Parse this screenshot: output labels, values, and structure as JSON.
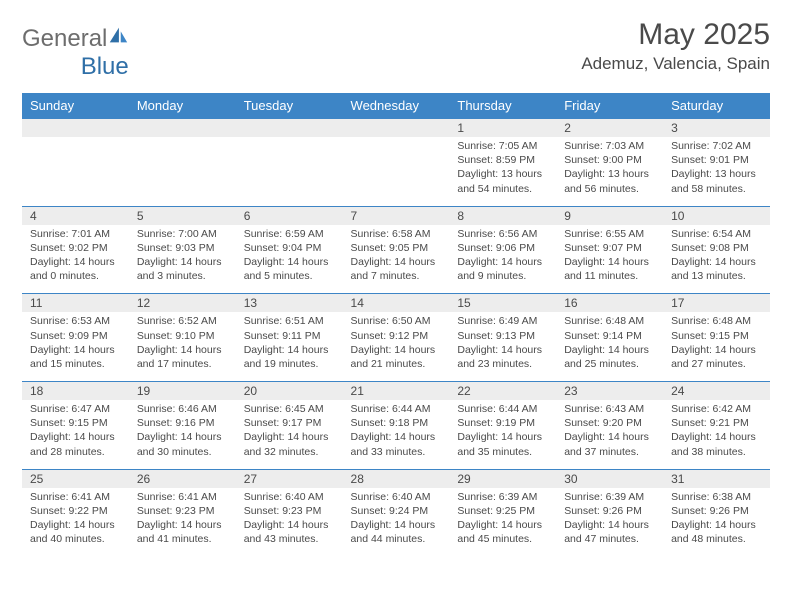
{
  "brand": {
    "name_a": "General",
    "name_b": "Blue"
  },
  "title": "May 2025",
  "location": "Ademuz, Valencia, Spain",
  "colors": {
    "header_bg": "#3d85c6",
    "header_text": "#ffffff",
    "daynum_bg": "#ededed",
    "border": "#3d85c6",
    "body_text": "#4a4a4a",
    "logo_gray": "#6d6d6d",
    "logo_blue": "#2f6fa7"
  },
  "weekdays": [
    "Sunday",
    "Monday",
    "Tuesday",
    "Wednesday",
    "Thursday",
    "Friday",
    "Saturday"
  ],
  "weeks": [
    {
      "nums": [
        "",
        "",
        "",
        "",
        "1",
        "2",
        "3"
      ],
      "cells": [
        "",
        "",
        "",
        "",
        "Sunrise: 7:05 AM\nSunset: 8:59 PM\nDaylight: 13 hours and 54 minutes.",
        "Sunrise: 7:03 AM\nSunset: 9:00 PM\nDaylight: 13 hours and 56 minutes.",
        "Sunrise: 7:02 AM\nSunset: 9:01 PM\nDaylight: 13 hours and 58 minutes."
      ]
    },
    {
      "nums": [
        "4",
        "5",
        "6",
        "7",
        "8",
        "9",
        "10"
      ],
      "cells": [
        "Sunrise: 7:01 AM\nSunset: 9:02 PM\nDaylight: 14 hours and 0 minutes.",
        "Sunrise: 7:00 AM\nSunset: 9:03 PM\nDaylight: 14 hours and 3 minutes.",
        "Sunrise: 6:59 AM\nSunset: 9:04 PM\nDaylight: 14 hours and 5 minutes.",
        "Sunrise: 6:58 AM\nSunset: 9:05 PM\nDaylight: 14 hours and 7 minutes.",
        "Sunrise: 6:56 AM\nSunset: 9:06 PM\nDaylight: 14 hours and 9 minutes.",
        "Sunrise: 6:55 AM\nSunset: 9:07 PM\nDaylight: 14 hours and 11 minutes.",
        "Sunrise: 6:54 AM\nSunset: 9:08 PM\nDaylight: 14 hours and 13 minutes."
      ]
    },
    {
      "nums": [
        "11",
        "12",
        "13",
        "14",
        "15",
        "16",
        "17"
      ],
      "cells": [
        "Sunrise: 6:53 AM\nSunset: 9:09 PM\nDaylight: 14 hours and 15 minutes.",
        "Sunrise: 6:52 AM\nSunset: 9:10 PM\nDaylight: 14 hours and 17 minutes.",
        "Sunrise: 6:51 AM\nSunset: 9:11 PM\nDaylight: 14 hours and 19 minutes.",
        "Sunrise: 6:50 AM\nSunset: 9:12 PM\nDaylight: 14 hours and 21 minutes.",
        "Sunrise: 6:49 AM\nSunset: 9:13 PM\nDaylight: 14 hours and 23 minutes.",
        "Sunrise: 6:48 AM\nSunset: 9:14 PM\nDaylight: 14 hours and 25 minutes.",
        "Sunrise: 6:48 AM\nSunset: 9:15 PM\nDaylight: 14 hours and 27 minutes."
      ]
    },
    {
      "nums": [
        "18",
        "19",
        "20",
        "21",
        "22",
        "23",
        "24"
      ],
      "cells": [
        "Sunrise: 6:47 AM\nSunset: 9:15 PM\nDaylight: 14 hours and 28 minutes.",
        "Sunrise: 6:46 AM\nSunset: 9:16 PM\nDaylight: 14 hours and 30 minutes.",
        "Sunrise: 6:45 AM\nSunset: 9:17 PM\nDaylight: 14 hours and 32 minutes.",
        "Sunrise: 6:44 AM\nSunset: 9:18 PM\nDaylight: 14 hours and 33 minutes.",
        "Sunrise: 6:44 AM\nSunset: 9:19 PM\nDaylight: 14 hours and 35 minutes.",
        "Sunrise: 6:43 AM\nSunset: 9:20 PM\nDaylight: 14 hours and 37 minutes.",
        "Sunrise: 6:42 AM\nSunset: 9:21 PM\nDaylight: 14 hours and 38 minutes."
      ]
    },
    {
      "nums": [
        "25",
        "26",
        "27",
        "28",
        "29",
        "30",
        "31"
      ],
      "cells": [
        "Sunrise: 6:41 AM\nSunset: 9:22 PM\nDaylight: 14 hours and 40 minutes.",
        "Sunrise: 6:41 AM\nSunset: 9:23 PM\nDaylight: 14 hours and 41 minutes.",
        "Sunrise: 6:40 AM\nSunset: 9:23 PM\nDaylight: 14 hours and 43 minutes.",
        "Sunrise: 6:40 AM\nSunset: 9:24 PM\nDaylight: 14 hours and 44 minutes.",
        "Sunrise: 6:39 AM\nSunset: 9:25 PM\nDaylight: 14 hours and 45 minutes.",
        "Sunrise: 6:39 AM\nSunset: 9:26 PM\nDaylight: 14 hours and 47 minutes.",
        "Sunrise: 6:38 AM\nSunset: 9:26 PM\nDaylight: 14 hours and 48 minutes."
      ]
    }
  ]
}
